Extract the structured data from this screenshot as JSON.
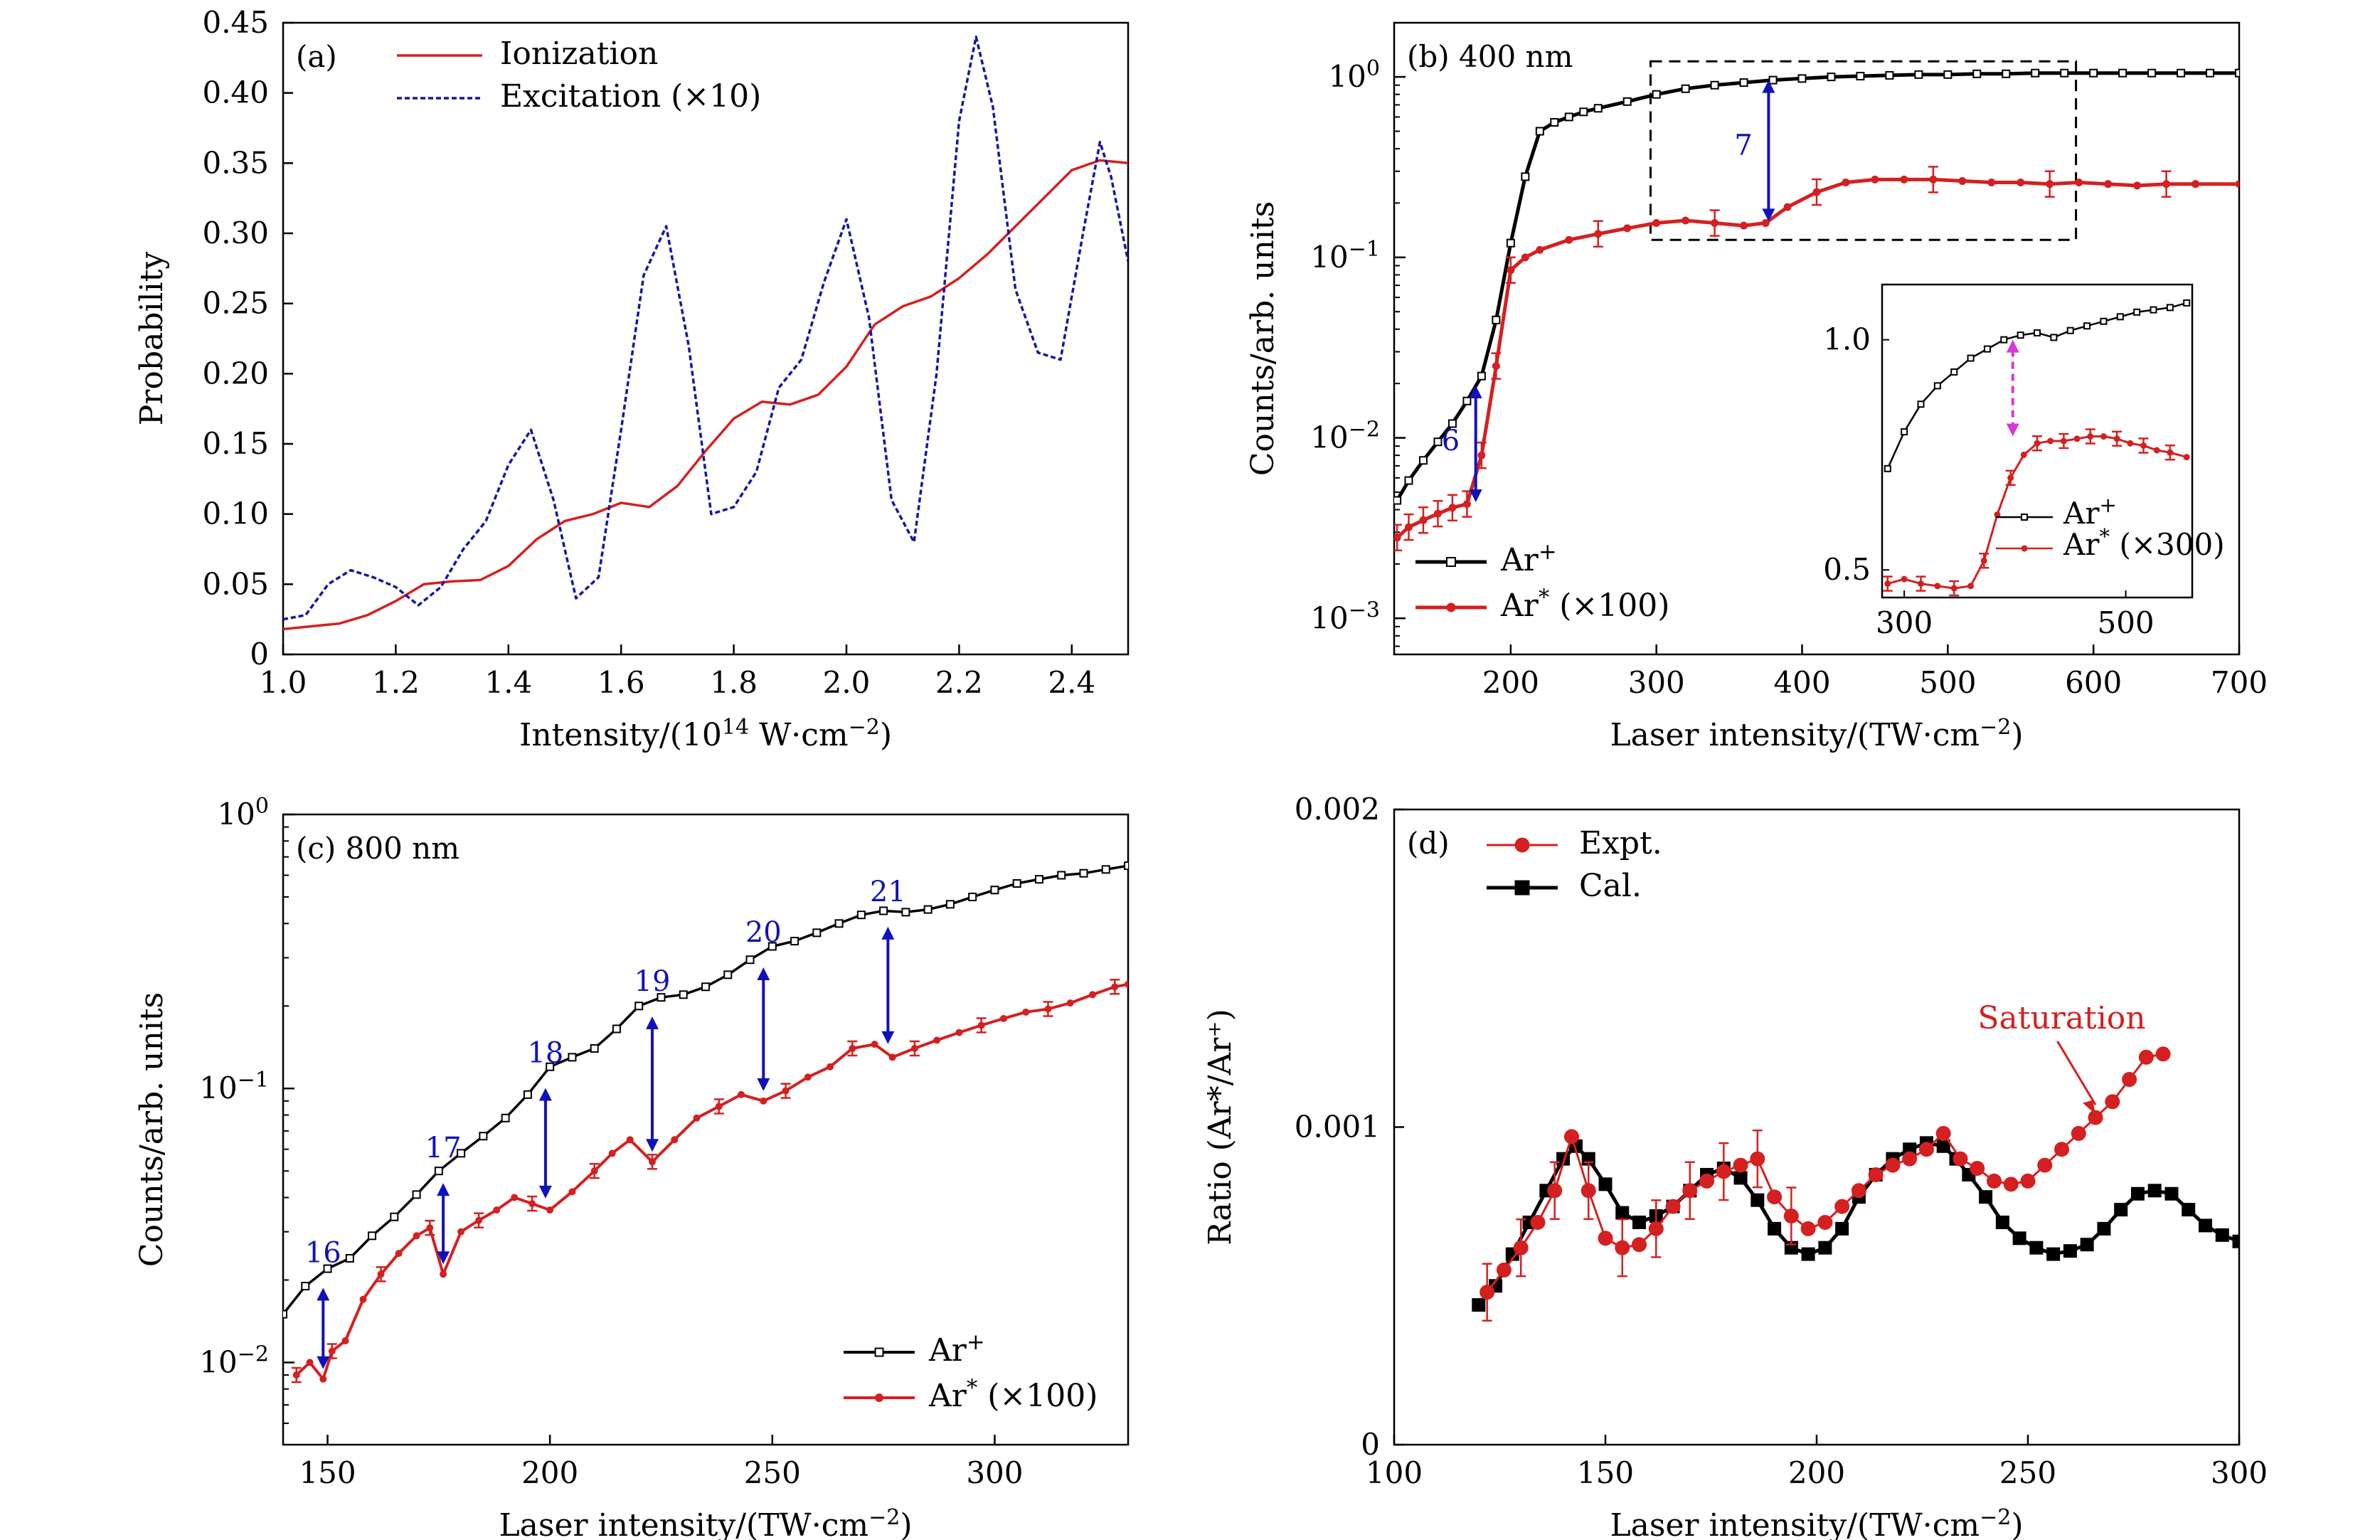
{
  "chart_data": [
    {
      "panel": "a",
      "type": "line",
      "panel_label": "(a)",
      "xlabel": "Intensity/(10",
      "xlabel_sup": "14",
      "xlabel_tail": " W·cm",
      "xlabel_tail_sup": "−2",
      "xlabel_end": ")",
      "ylabel": "Probability",
      "xlim": [
        1.0,
        2.5
      ],
      "ylim": [
        0,
        0.45
      ],
      "xticks": [
        1.0,
        1.2,
        1.4,
        1.6,
        1.8,
        2.0,
        2.2,
        2.4
      ],
      "xtick_labels": [
        "1.0",
        "1.2",
        "1.4",
        "1.6",
        "1.8",
        "2.0",
        "2.2",
        "2.4"
      ],
      "yticks": [
        0,
        0.05,
        0.1,
        0.15,
        0.2,
        0.25,
        0.3,
        0.35,
        0.4,
        0.45
      ],
      "ytick_labels": [
        "0",
        "0.05",
        "0.10",
        "0.15",
        "0.20",
        "0.25",
        "0.30",
        "0.35",
        "0.40",
        "0.45"
      ],
      "series": [
        {
          "name": "Ionization",
          "color": "#d42020",
          "style": "solid",
          "x": [
            1.0,
            1.05,
            1.1,
            1.15,
            1.2,
            1.25,
            1.3,
            1.35,
            1.4,
            1.45,
            1.5,
            1.55,
            1.6,
            1.65,
            1.7,
            1.75,
            1.8,
            1.85,
            1.9,
            1.95,
            2.0,
            2.05,
            2.1,
            2.15,
            2.2,
            2.25,
            2.3,
            2.35,
            2.4,
            2.45,
            2.5
          ],
          "y": [
            0.018,
            0.02,
            0.022,
            0.028,
            0.038,
            0.05,
            0.052,
            0.053,
            0.063,
            0.082,
            0.095,
            0.1,
            0.108,
            0.105,
            0.12,
            0.145,
            0.168,
            0.18,
            0.178,
            0.185,
            0.205,
            0.235,
            0.248,
            0.255,
            0.268,
            0.285,
            0.305,
            0.325,
            0.345,
            0.352,
            0.35
          ]
        },
        {
          "name": "Excitation (×10)",
          "color": "#1515a8",
          "style": "dashed",
          "x": [
            1.0,
            1.04,
            1.08,
            1.12,
            1.16,
            1.2,
            1.24,
            1.28,
            1.32,
            1.36,
            1.4,
            1.44,
            1.48,
            1.52,
            1.56,
            1.6,
            1.64,
            1.68,
            1.72,
            1.76,
            1.8,
            1.84,
            1.88,
            1.92,
            1.96,
            2.0,
            2.04,
            2.08,
            2.12,
            2.16,
            2.2,
            2.23,
            2.26,
            2.3,
            2.34,
            2.38,
            2.42,
            2.45,
            2.47,
            2.5
          ],
          "y": [
            0.025,
            0.028,
            0.05,
            0.06,
            0.055,
            0.048,
            0.035,
            0.048,
            0.075,
            0.095,
            0.135,
            0.16,
            0.11,
            0.04,
            0.055,
            0.16,
            0.27,
            0.305,
            0.22,
            0.1,
            0.105,
            0.13,
            0.19,
            0.21,
            0.265,
            0.31,
            0.24,
            0.11,
            0.08,
            0.2,
            0.38,
            0.44,
            0.39,
            0.26,
            0.215,
            0.21,
            0.3,
            0.365,
            0.34,
            0.28
          ]
        }
      ],
      "legend_labels": [
        "Ionization",
        "Excitation (×10)"
      ]
    },
    {
      "panel": "b",
      "type": "line",
      "panel_label": "(b) 400 nm",
      "xlabel": "Laser intensity/(TW·cm",
      "xlabel_sup": "−2",
      "xlabel_end": ")",
      "ylabel": "Counts/arb. units",
      "yscale": "log",
      "xlim": [
        120,
        700
      ],
      "ylim_log10": [
        -3.2,
        0.3
      ],
      "xticks": [
        200,
        300,
        400,
        500,
        600,
        700
      ],
      "xtick_labels": [
        "200",
        "300",
        "400",
        "500",
        "600",
        "700"
      ],
      "yticks_log10": [
        -3,
        -2,
        -1,
        0
      ],
      "ytick_base": "10",
      "ytick_exps": [
        "−3",
        "−2",
        "−1",
        "0"
      ],
      "series": [
        {
          "name": "Ar⁺",
          "color": "#000000",
          "x": [
            122,
            130,
            140,
            150,
            160,
            170,
            180,
            190,
            200,
            210,
            220,
            230,
            240,
            250,
            260,
            280,
            300,
            320,
            340,
            360,
            380,
            400,
            420,
            440,
            460,
            480,
            500,
            520,
            540,
            560,
            580,
            600,
            620,
            640,
            660,
            680,
            700
          ],
          "y": [
            0.0045,
            0.0058,
            0.0075,
            0.0095,
            0.012,
            0.016,
            0.022,
            0.045,
            0.12,
            0.28,
            0.5,
            0.56,
            0.6,
            0.64,
            0.67,
            0.73,
            0.8,
            0.86,
            0.9,
            0.93,
            0.96,
            0.98,
            1.0,
            1.01,
            1.02,
            1.03,
            1.03,
            1.04,
            1.04,
            1.05,
            1.05,
            1.05,
            1.05,
            1.05,
            1.05,
            1.05,
            1.05
          ]
        },
        {
          "name": "Ar* (×100)",
          "color": "#d42020",
          "x": [
            122,
            130,
            140,
            150,
            160,
            170,
            180,
            190,
            200,
            210,
            220,
            240,
            260,
            280,
            300,
            320,
            340,
            360,
            375,
            390,
            410,
            430,
            450,
            470,
            490,
            510,
            530,
            550,
            570,
            590,
            610,
            630,
            650,
            670,
            700
          ],
          "y": [
            0.0028,
            0.0032,
            0.0035,
            0.0038,
            0.0041,
            0.0043,
            0.008,
            0.025,
            0.085,
            0.1,
            0.11,
            0.125,
            0.135,
            0.145,
            0.155,
            0.16,
            0.155,
            0.15,
            0.155,
            0.19,
            0.23,
            0.26,
            0.27,
            0.27,
            0.27,
            0.265,
            0.26,
            0.26,
            0.255,
            0.26,
            0.255,
            0.25,
            0.255,
            0.255,
            0.255
          ]
        }
      ],
      "legend_labels": [
        "Ar",
        "Ar"
      ],
      "legend_sups": [
        "+",
        "*"
      ],
      "legend_tails": [
        "",
        " (×100)"
      ],
      "arrow_labels": [
        "6",
        "7"
      ],
      "inset": {
        "xlim": [
          280,
          560
        ],
        "ylim": [
          0.44,
          1.12
        ],
        "xticks": [
          300,
          500
        ],
        "xtick_labels": [
          "300",
          "500"
        ],
        "yticks": [
          0.5,
          1.0
        ],
        "ytick_labels": [
          "0.5",
          "1.0"
        ],
        "legend_labels": [
          "Ar",
          "Ar"
        ],
        "legend_sups": [
          "+",
          "*"
        ],
        "legend_tails": [
          "",
          " (×300)"
        ],
        "series": [
          {
            "name": "Ar⁺",
            "color": "#000000",
            "x": [
              285,
              300,
              315,
              330,
              345,
              360,
              375,
              390,
              405,
              420,
              435,
              450,
              465,
              480,
              495,
              510,
              525,
              540,
              555
            ],
            "y": [
              0.72,
              0.8,
              0.86,
              0.9,
              0.93,
              0.96,
              0.98,
              1.0,
              1.01,
              1.015,
              1.005,
              1.02,
              1.03,
              1.04,
              1.05,
              1.06,
              1.065,
              1.07,
              1.08
            ]
          },
          {
            "name": "Ar* (×300)",
            "color": "#d42020",
            "x": [
              285,
              300,
              315,
              330,
              345,
              360,
              372,
              384,
              396,
              408,
              420,
              432,
              444,
              456,
              468,
              480,
              492,
              504,
              516,
              528,
              540,
              555
            ],
            "y": [
              0.47,
              0.48,
              0.47,
              0.465,
              0.46,
              0.465,
              0.52,
              0.62,
              0.7,
              0.75,
              0.775,
              0.78,
              0.78,
              0.785,
              0.79,
              0.79,
              0.785,
              0.775,
              0.77,
              0.76,
              0.755,
              0.745
            ]
          }
        ]
      }
    },
    {
      "panel": "c",
      "type": "line",
      "panel_label": "(c) 800 nm",
      "xlabel": "Laser intensity/(TW·cm",
      "xlabel_sup": "−2",
      "xlabel_end": ")",
      "ylabel": "Counts/arb. units",
      "yscale": "log",
      "xlim": [
        140,
        330
      ],
      "ylim_log10": [
        -2.3,
        0.0
      ],
      "xticks": [
        150,
        200,
        250,
        300
      ],
      "xtick_labels": [
        "150",
        "200",
        "250",
        "300"
      ],
      "yticks_log10": [
        -2,
        -1,
        0
      ],
      "ytick_base": "10",
      "ytick_exps": [
        "−2",
        "−1",
        "0"
      ],
      "series": [
        {
          "name": "Ar⁺",
          "color": "#000000",
          "x": [
            140,
            145,
            150,
            155,
            160,
            165,
            170,
            175,
            180,
            185,
            190,
            195,
            200,
            205,
            210,
            215,
            220,
            225,
            230,
            235,
            240,
            245,
            250,
            255,
            260,
            265,
            270,
            275,
            280,
            285,
            290,
            295,
            300,
            305,
            310,
            315,
            320,
            325,
            330
          ],
          "y": [
            0.015,
            0.019,
            0.022,
            0.024,
            0.029,
            0.034,
            0.041,
            0.05,
            0.058,
            0.067,
            0.078,
            0.095,
            0.12,
            0.13,
            0.14,
            0.165,
            0.2,
            0.215,
            0.22,
            0.235,
            0.26,
            0.295,
            0.33,
            0.345,
            0.37,
            0.4,
            0.43,
            0.445,
            0.44,
            0.45,
            0.47,
            0.5,
            0.53,
            0.56,
            0.58,
            0.6,
            0.61,
            0.63,
            0.65
          ]
        },
        {
          "name": "Ar* (×100)",
          "color": "#d42020",
          "x": [
            143,
            146,
            149,
            151,
            154,
            158,
            162,
            166,
            170,
            173,
            176,
            180,
            184,
            188,
            192,
            196,
            200,
            205,
            210,
            214,
            218,
            223,
            228,
            233,
            238,
            243,
            248,
            253,
            258,
            263,
            268,
            273,
            277,
            282,
            287,
            292,
            297,
            302,
            307,
            312,
            317,
            322,
            327,
            330
          ],
          "y": [
            0.009,
            0.01,
            0.0087,
            0.011,
            0.012,
            0.017,
            0.021,
            0.025,
            0.029,
            0.031,
            0.021,
            0.03,
            0.033,
            0.036,
            0.04,
            0.038,
            0.036,
            0.042,
            0.05,
            0.058,
            0.065,
            0.054,
            0.065,
            0.078,
            0.086,
            0.095,
            0.09,
            0.098,
            0.11,
            0.12,
            0.14,
            0.145,
            0.13,
            0.14,
            0.15,
            0.16,
            0.17,
            0.18,
            0.19,
            0.195,
            0.205,
            0.22,
            0.235,
            0.24
          ]
        }
      ],
      "legend_labels": [
        "Ar",
        "Ar"
      ],
      "legend_sups": [
        "+",
        "*"
      ],
      "legend_tails": [
        "",
        " (×100)"
      ],
      "arrows": [
        {
          "label": "16",
          "x": 149
        },
        {
          "label": "17",
          "x": 176
        },
        {
          "label": "18",
          "x": 199
        },
        {
          "label": "19",
          "x": 223
        },
        {
          "label": "20",
          "x": 248
        },
        {
          "label": "21",
          "x": 276
        }
      ]
    },
    {
      "panel": "d",
      "type": "line",
      "panel_label": "(d)",
      "xlabel": "Laser intensity/(TW·cm",
      "xlabel_sup": "−2",
      "xlabel_end": ")",
      "ylabel": "Ratio (Ar*/Ar⁺)",
      "xlim": [
        100,
        300
      ],
      "ylim": [
        0,
        0.002
      ],
      "xticks": [
        100,
        150,
        200,
        250,
        300
      ],
      "xtick_labels": [
        "100",
        "150",
        "200",
        "250",
        "300"
      ],
      "yticks": [
        0,
        0.001,
        0.002
      ],
      "ytick_labels": [
        "0",
        "0.001",
        "0.002"
      ],
      "annotation": "Saturation",
      "series": [
        {
          "name": "Expt.",
          "color": "#d42020",
          "marker": "circle",
          "x": [
            122,
            126,
            130,
            134,
            138,
            142,
            146,
            150,
            154,
            158,
            162,
            166,
            170,
            174,
            178,
            182,
            186,
            190,
            194,
            198,
            202,
            206,
            210,
            214,
            218,
            222,
            226,
            230,
            234,
            238,
            242,
            246,
            250,
            254,
            258,
            262,
            266,
            270,
            274,
            278,
            282
          ],
          "y": [
            0.00048,
            0.00055,
            0.00062,
            0.0007,
            0.0008,
            0.00097,
            0.0008,
            0.00065,
            0.00062,
            0.00063,
            0.00068,
            0.00075,
            0.0008,
            0.00083,
            0.00086,
            0.00088,
            0.0009,
            0.00078,
            0.00072,
            0.00068,
            0.0007,
            0.00075,
            0.0008,
            0.00085,
            0.00088,
            0.0009,
            0.00093,
            0.00098,
            0.0009,
            0.00087,
            0.00083,
            0.00082,
            0.00083,
            0.00088,
            0.00093,
            0.00098,
            0.00103,
            0.00108,
            0.00115,
            0.00122,
            0.00123
          ]
        },
        {
          "name": "Cal.",
          "color": "#000000",
          "marker": "square",
          "x": [
            120,
            124,
            128,
            132,
            136,
            140,
            143,
            146,
            150,
            154,
            158,
            162,
            166,
            170,
            174,
            178,
            182,
            186,
            190,
            194,
            198,
            202,
            206,
            210,
            214,
            218,
            222,
            226,
            230,
            233,
            236,
            240,
            244,
            248,
            252,
            256,
            260,
            264,
            268,
            272,
            276,
            280,
            284,
            288,
            292,
            296,
            300
          ],
          "y": [
            0.00044,
            0.0005,
            0.0006,
            0.0007,
            0.0008,
            0.0009,
            0.00094,
            0.0009,
            0.00082,
            0.00073,
            0.0007,
            0.00072,
            0.00075,
            0.0008,
            0.00085,
            0.00087,
            0.00084,
            0.00077,
            0.00068,
            0.00062,
            0.0006,
            0.00062,
            0.00068,
            0.00078,
            0.00085,
            0.0009,
            0.00093,
            0.00095,
            0.00094,
            0.0009,
            0.00085,
            0.00078,
            0.0007,
            0.00065,
            0.00062,
            0.0006,
            0.00061,
            0.00063,
            0.00068,
            0.00074,
            0.00079,
            0.0008,
            0.00079,
            0.00074,
            0.00069,
            0.00066,
            0.00064
          ]
        }
      ],
      "legend_labels": [
        "Expt.",
        "Cal."
      ]
    }
  ]
}
